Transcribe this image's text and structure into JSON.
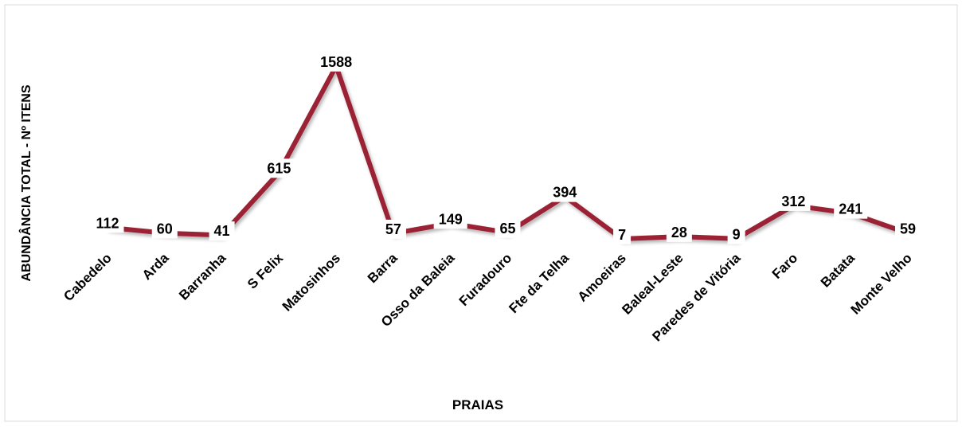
{
  "chart_data": {
    "type": "line",
    "x_label": "PRAIAS",
    "y_label": "ABUNDÂNCIA TOTAL - Nº ITENS",
    "categories": [
      "Cabedelo",
      "Arda",
      "Barranha",
      "S Felix",
      "Matosinhos",
      "Barra",
      "Osso da Baleia",
      "Furadouro",
      "Fte da Telha",
      "Amoeiras",
      "Baleal-Leste",
      "Paredes de Vitória",
      "Faro",
      "Batata",
      "Monte Velho"
    ],
    "series": [
      {
        "name": "Abundância",
        "color": "#9b2335",
        "values": [
          112,
          60,
          41,
          615,
          1588,
          57,
          149,
          65,
          394,
          7,
          28,
          9,
          312,
          241,
          59
        ]
      }
    ]
  }
}
